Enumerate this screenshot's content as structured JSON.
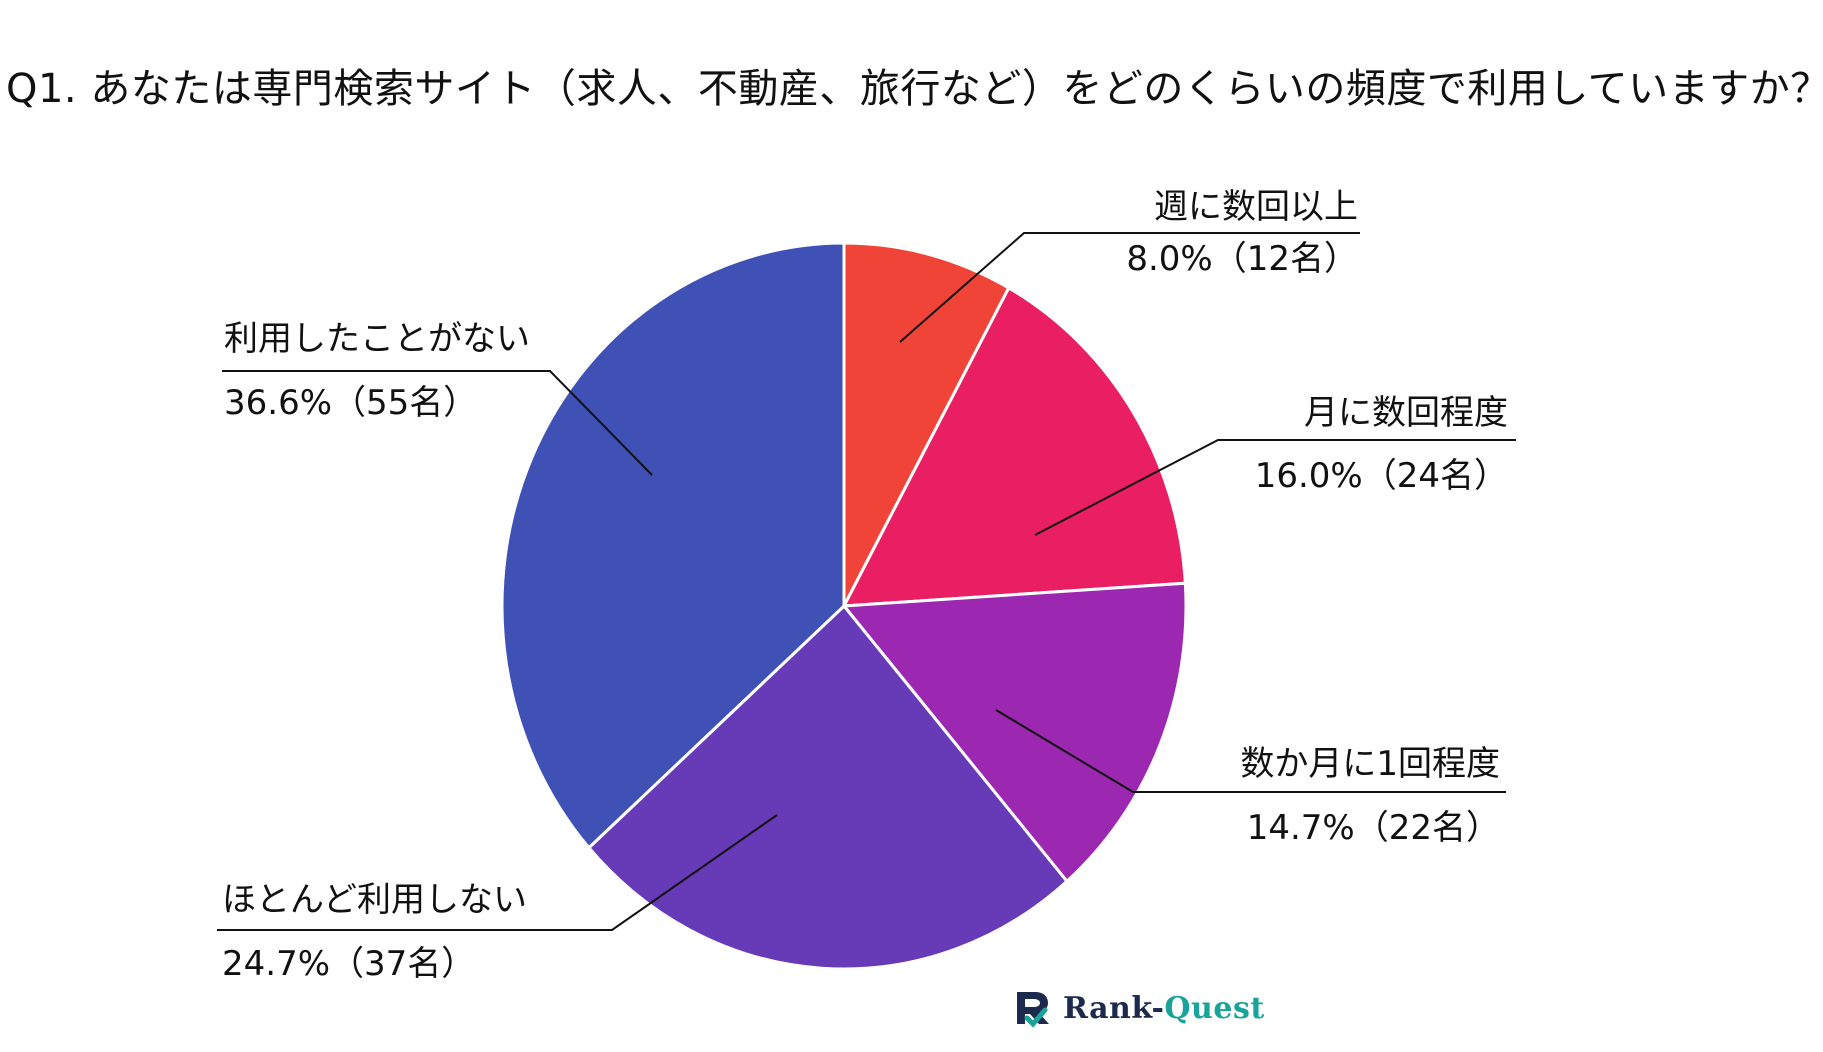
{
  "chart_data": {
    "type": "pie",
    "title": "Q1. あなたは専門検索サイト（求人、不動産、旅行など）をどのくらいの頻度で利用していますか？",
    "slices": [
      {
        "label": "週に数回以上",
        "value_text": "8.0%（12名）",
        "percent": 8.0,
        "count": 12,
        "color": "#f04438"
      },
      {
        "label": "月に数回程度",
        "value_text": "16.0%（24名）",
        "percent": 16.0,
        "count": 24,
        "color": "#e91e63"
      },
      {
        "label": "数か月に1回程度",
        "value_text": "14.7%（22名）",
        "percent": 14.7,
        "count": 22,
        "color": "#9c27b0"
      },
      {
        "label": "ほとんど利用しない",
        "value_text": "24.7%（37名）",
        "percent": 24.7,
        "count": 37,
        "color": "#673ab7"
      },
      {
        "label": "利用したことがない",
        "value_text": "36.6%（55名）",
        "percent": 36.6,
        "count": 55,
        "color": "#3f51b5"
      }
    ],
    "start": "12 o'clock",
    "direction": "clockwise",
    "legend": "none"
  },
  "logo": {
    "text_rank": "Rank-",
    "text_quest": "Quest",
    "color_rank": "#1c2a4e",
    "color_quest": "#1aa39a"
  }
}
